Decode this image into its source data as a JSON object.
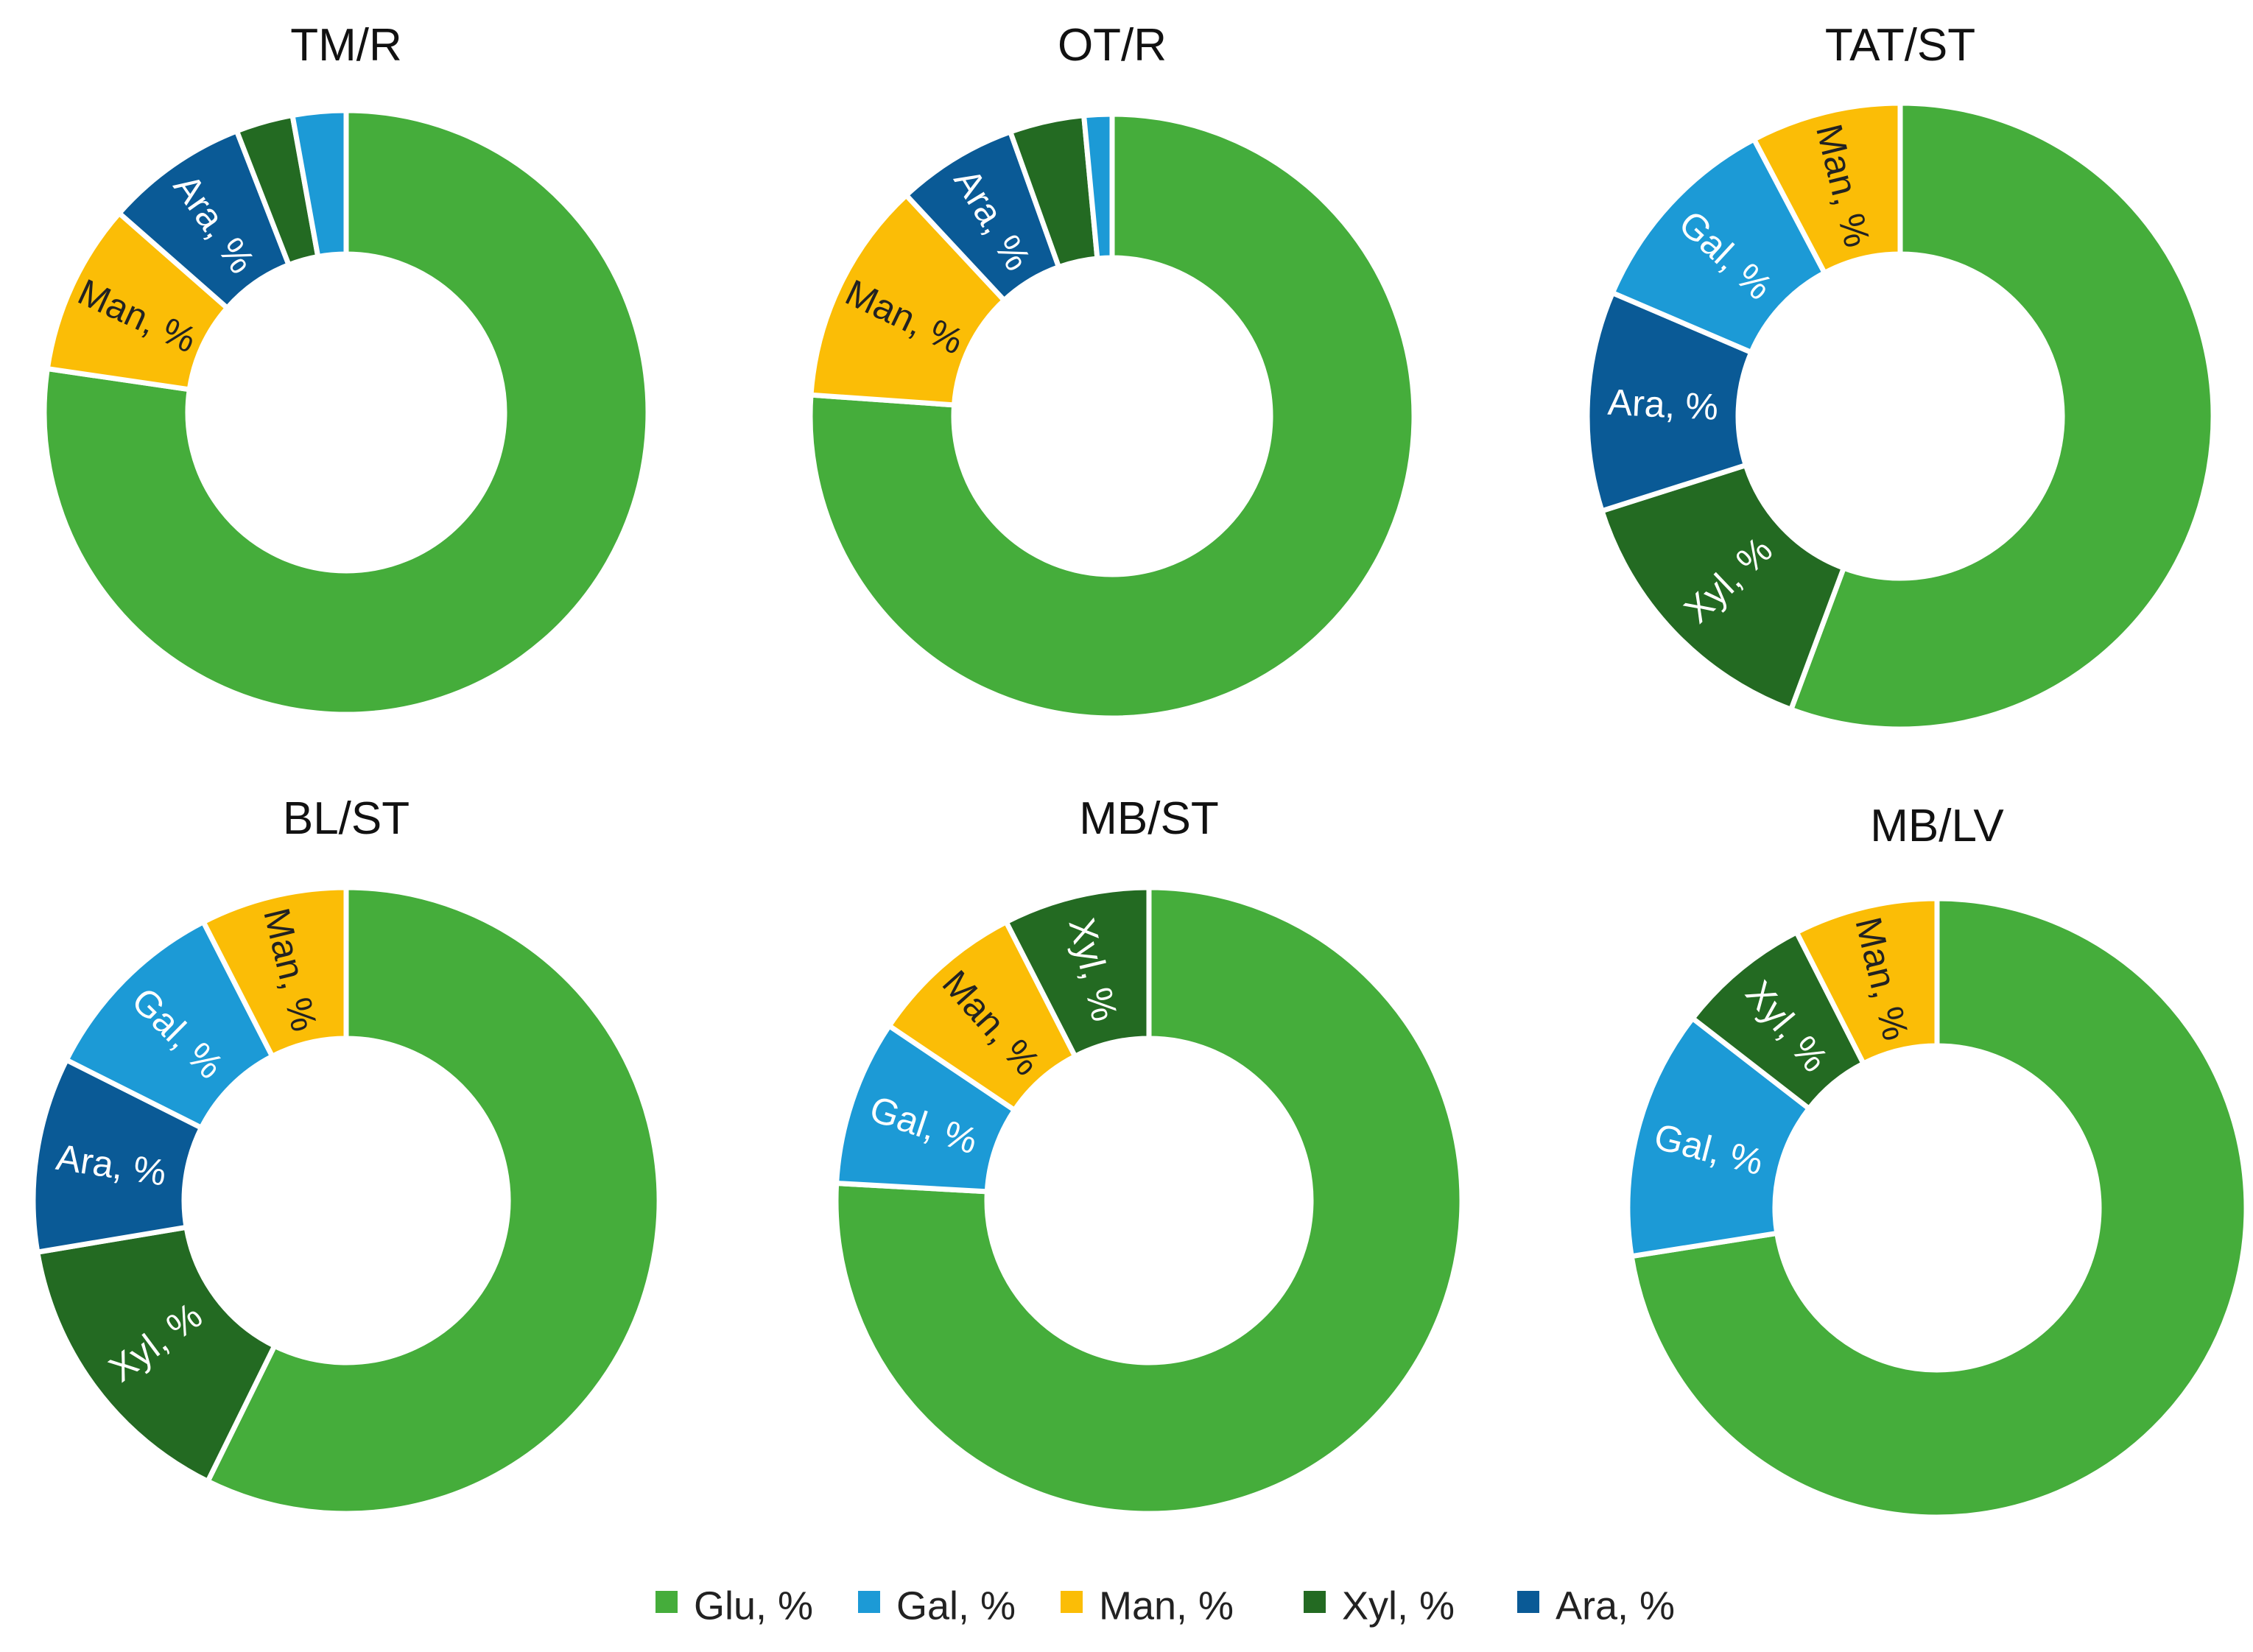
{
  "colors": {
    "Glu": "#45ad3b",
    "Gal": "#1c9ad6",
    "Man": "#fbbd06",
    "Xyl": "#236a22",
    "Ara": "#0a5a96"
  },
  "legend": [
    {
      "key": "Glu",
      "label": "Glu, %"
    },
    {
      "key": "Gal",
      "label": "Gal, %"
    },
    {
      "key": "Man",
      "label": "Man, %"
    },
    {
      "key": "Xyl",
      "label": "Xyl, %"
    },
    {
      "key": "Ara",
      "label": "Ara, %"
    }
  ],
  "chart_data": [
    {
      "type": "pie",
      "title": "TM/R",
      "slices": [
        {
          "key": "Glu",
          "value": 76.0,
          "label": ""
        },
        {
          "key": "Man",
          "value": 9.0,
          "label": "Man, %"
        },
        {
          "key": "Ara",
          "value": 7.5,
          "label": "Ara, %"
        },
        {
          "key": "Xyl",
          "value": 3.0,
          "label": ""
        },
        {
          "key": "Gal",
          "value": 2.8,
          "label": ""
        }
      ]
    },
    {
      "type": "pie",
      "title": "OT/R",
      "slices": [
        {
          "key": "Glu",
          "value": 76.5,
          "label": ""
        },
        {
          "key": "Man",
          "value": 12.0,
          "label": "Man, %"
        },
        {
          "key": "Ara",
          "value": 6.5,
          "label": "Ara, %"
        },
        {
          "key": "Xyl",
          "value": 4.0,
          "label": ""
        },
        {
          "key": "Gal",
          "value": 1.5,
          "label": ""
        }
      ]
    },
    {
      "type": "pie",
      "title": "TAT/ST",
      "slices": [
        {
          "key": "Glu",
          "value": 54.0,
          "label": ""
        },
        {
          "key": "Xyl",
          "value": 14.0,
          "label": "Xyl, %"
        },
        {
          "key": "Ara",
          "value": 11.0,
          "label": "Ara, %"
        },
        {
          "key": "Gal",
          "value": 10.5,
          "label": "Gal, %"
        },
        {
          "key": "Man",
          "value": 7.5,
          "label": "Man, %"
        }
      ]
    },
    {
      "type": "pie",
      "title": "BL/ST",
      "slices": [
        {
          "key": "Glu",
          "value": 57.0,
          "label": ""
        },
        {
          "key": "Xyl",
          "value": 15.0,
          "label": "Xyl, %"
        },
        {
          "key": "Ara",
          "value": 10.0,
          "label": "Ara, %"
        },
        {
          "key": "Gal",
          "value": 10.0,
          "label": "Gal, %"
        },
        {
          "key": "Man",
          "value": 7.5,
          "label": "Man, %"
        }
      ]
    },
    {
      "type": "pie",
      "title": "MB/ST",
      "slices": [
        {
          "key": "Glu",
          "value": 75.5,
          "label": ""
        },
        {
          "key": "Gal",
          "value": 8.5,
          "label": "Gal, %"
        },
        {
          "key": "Man",
          "value": 8.0,
          "label": "Man, %"
        },
        {
          "key": "Xyl",
          "value": 7.5,
          "label": "Xyl, %"
        }
      ]
    },
    {
      "type": "pie",
      "title": "MB/LV",
      "slices": [
        {
          "key": "Glu",
          "value": 72.5,
          "label": ""
        },
        {
          "key": "Gal",
          "value": 13.0,
          "label": "Gal, %"
        },
        {
          "key": "Xyl",
          "value": 7.0,
          "label": "Xyl, %"
        },
        {
          "key": "Man",
          "value": 7.5,
          "label": "Man, %"
        }
      ]
    }
  ]
}
